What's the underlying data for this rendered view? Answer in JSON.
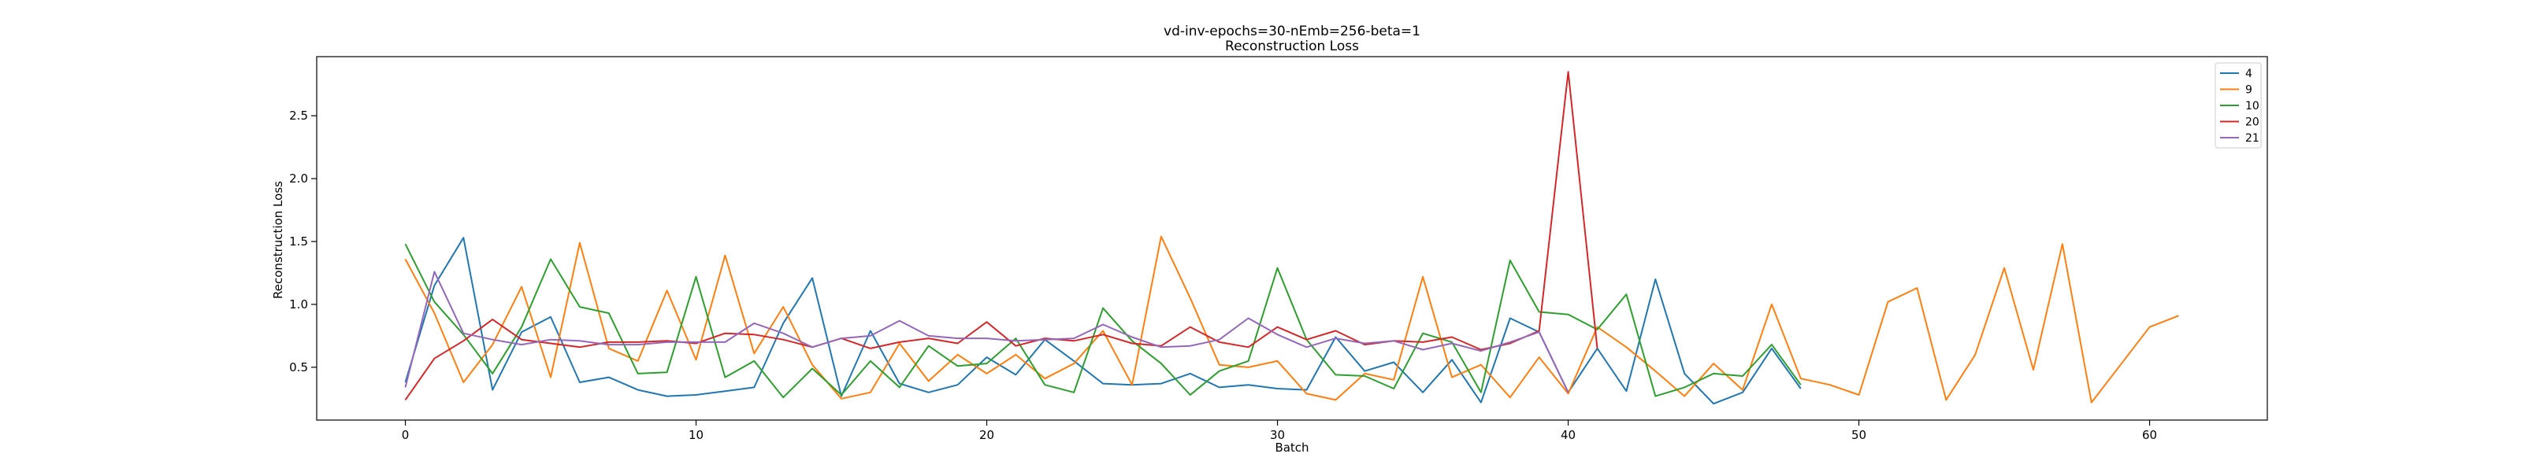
{
  "chart_data": {
    "type": "line",
    "title": "vd-inv-epochs=30-nEmb=256-beta=1",
    "subtitle": "Reconstruction Loss",
    "xlabel": "Batch",
    "ylabel": "Reconstruction Loss",
    "xlim": [
      -3.05,
      64.05
    ],
    "ylim": [
      0.08,
      2.97
    ],
    "xticks": [
      0,
      10,
      20,
      30,
      40,
      50,
      60
    ],
    "xtick_labels": [
      "0",
      "10",
      "20",
      "30",
      "40",
      "50",
      "60"
    ],
    "yticks": [
      0.5,
      1.0,
      1.5,
      2.0,
      2.5
    ],
    "ytick_labels": [
      "0.5",
      "1.0",
      "1.5",
      "2.0",
      "2.5"
    ],
    "grid": false,
    "legend_position": "top-right",
    "series": [
      {
        "name": "4",
        "color": "#1f77b4",
        "x": [
          0,
          1,
          2,
          3,
          4,
          5,
          6,
          7,
          8,
          9,
          10,
          11,
          12,
          13,
          14,
          15,
          16,
          17,
          18,
          19,
          20,
          21,
          22,
          23,
          24,
          25,
          26,
          27,
          28,
          29,
          30,
          31,
          32,
          33,
          34,
          35,
          36,
          37,
          38,
          39,
          40,
          41,
          42,
          43,
          44,
          45,
          46,
          47,
          48
        ],
        "values": [
          0.38,
          1.15,
          1.53,
          0.32,
          0.78,
          0.9,
          0.38,
          0.42,
          0.32,
          0.27,
          0.28,
          0.31,
          0.34,
          0.85,
          1.21,
          0.27,
          0.79,
          0.37,
          0.3,
          0.36,
          0.58,
          0.44,
          0.72,
          0.55,
          0.37,
          0.36,
          0.37,
          0.45,
          0.34,
          0.36,
          0.33,
          0.32,
          0.74,
          0.47,
          0.54,
          0.3,
          0.56,
          0.22,
          0.89,
          0.78,
          0.3,
          0.65,
          0.31,
          1.2,
          0.45,
          0.21,
          0.3,
          0.65,
          0.33
        ]
      },
      {
        "name": "9",
        "color": "#ff7f0e",
        "x": [
          0,
          1,
          2,
          3,
          4,
          5,
          6,
          7,
          8,
          9,
          10,
          11,
          12,
          13,
          14,
          15,
          16,
          17,
          18,
          19,
          20,
          21,
          22,
          23,
          24,
          25,
          26,
          27,
          28,
          29,
          30,
          31,
          32,
          33,
          34,
          35,
          36,
          37,
          38,
          39,
          40,
          41,
          42,
          43,
          44,
          45,
          46,
          47,
          48,
          49,
          50,
          51,
          52,
          53,
          54,
          55,
          56,
          57,
          58,
          59,
          60,
          61
        ],
        "values": [
          1.36,
          0.93,
          0.38,
          0.68,
          1.14,
          0.42,
          1.49,
          0.65,
          0.55,
          1.11,
          0.56,
          1.39,
          0.61,
          0.98,
          0.52,
          0.25,
          0.3,
          0.69,
          0.39,
          0.6,
          0.45,
          0.6,
          0.41,
          0.53,
          0.79,
          0.36,
          1.54,
          1.05,
          0.52,
          0.5,
          0.55,
          0.29,
          0.24,
          0.45,
          0.4,
          1.22,
          0.42,
          0.52,
          0.26,
          0.58,
          0.29,
          0.82,
          0.66,
          0.47,
          0.27,
          0.53,
          0.32,
          1.0,
          0.41,
          0.36,
          0.28,
          1.02,
          1.13,
          0.24,
          0.6,
          1.29,
          0.48,
          1.48,
          0.22,
          0.52,
          0.82,
          0.91
        ]
      },
      {
        "name": "10",
        "color": "#2ca02c",
        "x": [
          0,
          1,
          2,
          3,
          4,
          5,
          6,
          7,
          8,
          9,
          10,
          11,
          12,
          13,
          14,
          15,
          16,
          17,
          18,
          19,
          20,
          21,
          22,
          23,
          24,
          25,
          26,
          27,
          28,
          29,
          30,
          31,
          32,
          33,
          34,
          35,
          36,
          37,
          38,
          39,
          40,
          41,
          42,
          43,
          44,
          45,
          46,
          47,
          48
        ],
        "values": [
          1.48,
          1.02,
          0.76,
          0.45,
          0.82,
          1.36,
          0.98,
          0.93,
          0.45,
          0.46,
          1.22,
          0.42,
          0.55,
          0.26,
          0.49,
          0.28,
          0.55,
          0.34,
          0.67,
          0.51,
          0.53,
          0.73,
          0.36,
          0.3,
          0.97,
          0.71,
          0.53,
          0.28,
          0.47,
          0.55,
          1.29,
          0.72,
          0.44,
          0.43,
          0.33,
          0.77,
          0.7,
          0.3,
          1.35,
          0.94,
          0.92,
          0.8,
          1.08,
          0.27,
          0.34,
          0.45,
          0.43,
          0.68,
          0.36
        ]
      },
      {
        "name": "20",
        "color": "#d62728",
        "x": [
          0,
          1,
          2,
          3,
          4,
          5,
          6,
          7,
          8,
          9,
          10,
          11,
          12,
          13,
          14,
          15,
          16,
          17,
          18,
          19,
          20,
          21,
          22,
          23,
          24,
          25,
          26,
          27,
          28,
          29,
          30,
          31,
          32,
          33,
          34,
          35,
          36,
          37,
          38,
          39,
          40,
          41
        ],
        "values": [
          0.24,
          0.57,
          0.71,
          0.88,
          0.72,
          0.69,
          0.66,
          0.7,
          0.7,
          0.71,
          0.69,
          0.77,
          0.76,
          0.72,
          0.66,
          0.73,
          0.65,
          0.7,
          0.73,
          0.69,
          0.86,
          0.67,
          0.73,
          0.71,
          0.76,
          0.69,
          0.67,
          0.82,
          0.7,
          0.66,
          0.82,
          0.72,
          0.79,
          0.68,
          0.71,
          0.7,
          0.74,
          0.64,
          0.69,
          0.79,
          2.85,
          0.65
        ]
      },
      {
        "name": "21",
        "color": "#9467bd",
        "x": [
          0,
          1,
          2,
          3,
          4,
          5,
          6,
          7,
          8,
          9,
          10,
          11,
          12,
          13,
          14,
          15,
          16,
          17,
          18,
          19,
          20,
          21,
          22,
          23,
          24,
          25,
          26,
          27,
          28,
          29,
          30,
          31,
          32,
          33,
          34,
          35,
          36,
          37,
          38,
          39,
          40
        ],
        "values": [
          0.34,
          1.26,
          0.77,
          0.72,
          0.68,
          0.72,
          0.71,
          0.68,
          0.68,
          0.7,
          0.7,
          0.7,
          0.85,
          0.77,
          0.66,
          0.73,
          0.75,
          0.87,
          0.75,
          0.73,
          0.73,
          0.71,
          0.72,
          0.73,
          0.84,
          0.74,
          0.66,
          0.67,
          0.72,
          0.89,
          0.76,
          0.66,
          0.73,
          0.69,
          0.71,
          0.64,
          0.69,
          0.63,
          0.7,
          0.78,
          0.3
        ]
      }
    ]
  }
}
